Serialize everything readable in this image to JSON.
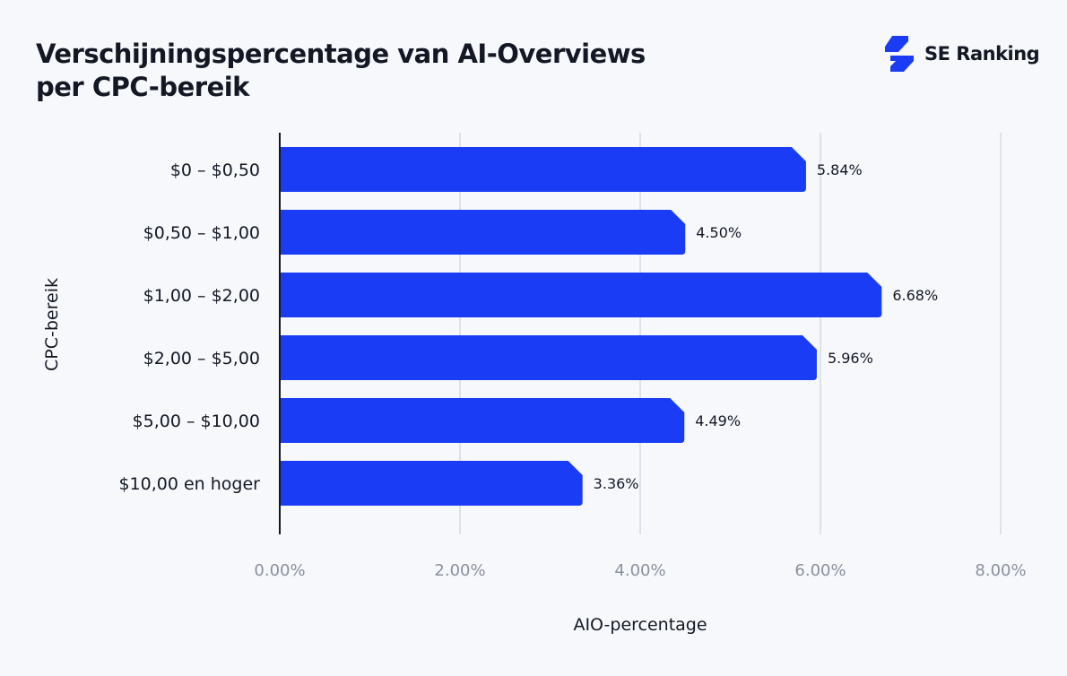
{
  "title_line1": "Verschijningspercentage van AI-Overviews",
  "title_line2": "per CPC-bereik",
  "brand": {
    "name": "SE Ranking",
    "icon": "se-ranking-logo-icon",
    "color": "#1b3cf5"
  },
  "chart_data": {
    "type": "bar",
    "orientation": "horizontal",
    "categories": [
      "$0 – $0,50",
      "$0,50 – $1,00",
      "$1,00 – $2,00",
      "$2,00 – $5,00",
      "$5,00 – $10,00",
      "$10,00 en hoger"
    ],
    "values": [
      5.84,
      4.5,
      6.68,
      5.96,
      4.49,
      3.36
    ],
    "data_labels": [
      "5.84%",
      "4.50%",
      "6.68%",
      "5.96%",
      "4.49%",
      "3.36%"
    ],
    "xlabel": "AIO-percentage",
    "ylabel": "CPC-bereik",
    "xlim": [
      0,
      8
    ],
    "xticks": [
      0,
      2,
      4,
      6,
      8
    ],
    "xtick_labels": [
      "0.00%",
      "2.00%",
      "4.00%",
      "6.00%",
      "8.00%"
    ],
    "grid": true,
    "bar_color": "#1b3cf5"
  }
}
